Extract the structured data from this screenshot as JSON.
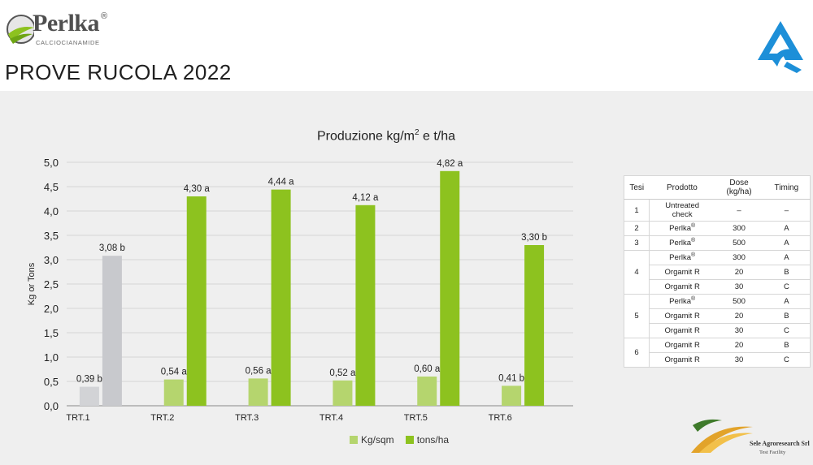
{
  "header": {
    "logo_text": "Perlka",
    "logo_reg": "®",
    "logo_sub": "CALCIOCIANAMIDE",
    "page_title": "PROVE RUCOLA 2022"
  },
  "chart_data": {
    "type": "bar",
    "title": "Produzione kg/m² e t/ha",
    "ylabel": "Kg or Tons",
    "xlabel": "",
    "ylim": [
      0,
      5
    ],
    "yticks": [
      "0,0",
      "0,5",
      "1,0",
      "1,5",
      "2,0",
      "2,5",
      "3,0",
      "3,5",
      "4,0",
      "4,5",
      "5,0"
    ],
    "categories": [
      "TRT.1",
      "TRT.2",
      "TRT.3",
      "TRT.4",
      "TRT.5",
      "TRT.6"
    ],
    "series": [
      {
        "name": "Kg/sqm",
        "values": [
          0.39,
          0.54,
          0.56,
          0.52,
          0.6,
          0.41
        ],
        "labels": [
          "0,39 b",
          "0,54 a",
          "0,56 a",
          "0,52 a",
          "0,60 a",
          "0,41 b"
        ],
        "color": "#b5d56e"
      },
      {
        "name": "tons/ha",
        "values": [
          3.08,
          4.3,
          4.44,
          4.12,
          4.82,
          3.3
        ],
        "labels": [
          "3,08 b",
          "4,30 a",
          "4,44 a",
          "4,12 a",
          "4,82 a",
          "3,30 b"
        ],
        "color": "#8dc21f"
      }
    ],
    "untreated_color": "#c8c9cd",
    "grid": true,
    "legend_position": "bottom"
  },
  "table": {
    "headers": [
      "Tesi",
      "Prodotto",
      "Dose (kg/ha)",
      "Timing"
    ],
    "groups": [
      {
        "tesi": "1",
        "rows": [
          {
            "prodotto": "Untreated check",
            "dose": "–",
            "timing": "–"
          }
        ]
      },
      {
        "tesi": "2",
        "rows": [
          {
            "prodotto": "Perlka®",
            "dose": "300",
            "timing": "A"
          }
        ]
      },
      {
        "tesi": "3",
        "rows": [
          {
            "prodotto": "Perlka®",
            "dose": "500",
            "timing": "A"
          }
        ]
      },
      {
        "tesi": "4",
        "rows": [
          {
            "prodotto": "Perlka®",
            "dose": "300",
            "timing": "A"
          },
          {
            "prodotto": "Orgamit R",
            "dose": "20",
            "timing": "B"
          },
          {
            "prodotto": "Orgamit R",
            "dose": "30",
            "timing": "C"
          }
        ]
      },
      {
        "tesi": "5",
        "rows": [
          {
            "prodotto": "Perlka®",
            "dose": "500",
            "timing": "A"
          },
          {
            "prodotto": "Orgamit R",
            "dose": "20",
            "timing": "B"
          },
          {
            "prodotto": "Orgamit R",
            "dose": "30",
            "timing": "C"
          }
        ]
      },
      {
        "tesi": "6",
        "rows": [
          {
            "prodotto": "Orgamit R",
            "dose": "20",
            "timing": "B"
          },
          {
            "prodotto": "Orgamit R",
            "dose": "30",
            "timing": "C"
          }
        ]
      }
    ]
  },
  "footer": {
    "company": "Sele Agroresearch Srl",
    "company_sub": "Test Facility"
  }
}
